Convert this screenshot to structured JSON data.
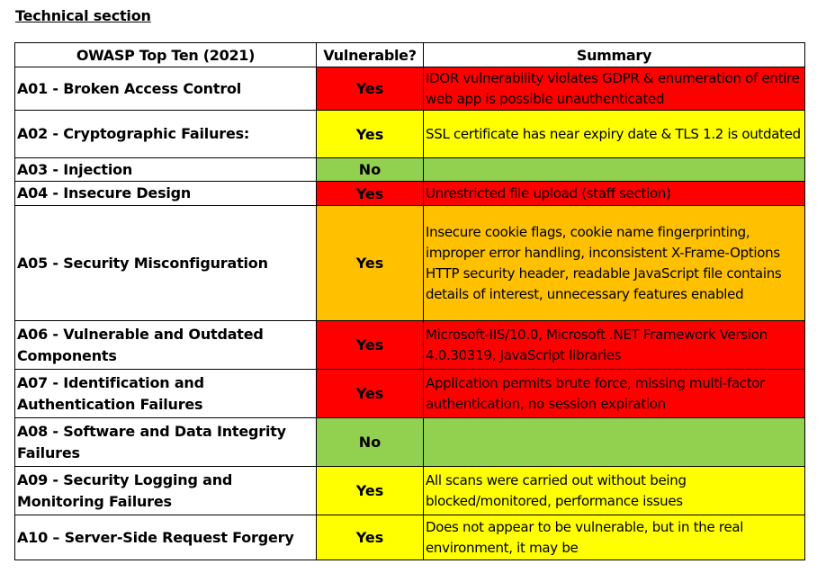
{
  "heading": "Technical section",
  "table": {
    "headers": [
      "OWASP Top Ten (2021)",
      "Vulnerable?",
      "Summary"
    ],
    "colors": {
      "red": "#ff0000",
      "yellow": "#ffff00",
      "green": "#92d050",
      "orange": "#ffc000"
    },
    "rows": [
      {
        "category": "A01 - Broken Access Control",
        "vulnerable": "Yes",
        "summary": "IDOR vulnerability violates GDPR & enumeration of entire web app is possible unauthenticated",
        "color": "red"
      },
      {
        "category": "A02 - Cryptographic Failures:",
        "vulnerable": "Yes",
        "summary": "SSL certificate has near expiry date & TLS 1.2 is outdated",
        "color": "yellow"
      },
      {
        "category": "A03 - Injection",
        "vulnerable": "No",
        "summary": "",
        "color": "green"
      },
      {
        "category": "A04 - Insecure Design",
        "vulnerable": "Yes",
        "summary": "Unrestricted file upload (staff section)",
        "color": "red"
      },
      {
        "category": "A05 - Security Misconfiguration",
        "vulnerable": "Yes",
        "summary": "Insecure cookie flags, cookie name fingerprinting, improper error handling, inconsistent X-Frame-Options HTTP security header, readable JavaScript file contains details of interest, unnecessary features enabled",
        "color": "orange"
      },
      {
        "category": "A06 - Vulnerable and Outdated Components",
        "vulnerable": "Yes",
        "summary": "Microsoft-IIS/10.0, Microsoft .NET Framework Version 4.0.30319, JavaScript libraries",
        "color": "red"
      },
      {
        "category": "A07 - Identification and Authentication Failures",
        "vulnerable": "Yes",
        "summary": "Application permits brute force, missing multi-factor authentication, no session expiration",
        "color": "red"
      },
      {
        "category": "A08 - Software and Data Integrity Failures",
        "vulnerable": "No",
        "summary": "",
        "color": "green"
      },
      {
        "category": "A09 - Security Logging and Monitoring Failures",
        "vulnerable": "Yes",
        "summary": "All scans were carried out without being blocked/monitored, performance issues",
        "color": "yellow"
      },
      {
        "category": "A10 – Server-Side Request Forgery",
        "vulnerable": "Yes",
        "summary": "Does not appear to be vulnerable, but in the real environment, it may be",
        "color": "yellow"
      }
    ]
  }
}
